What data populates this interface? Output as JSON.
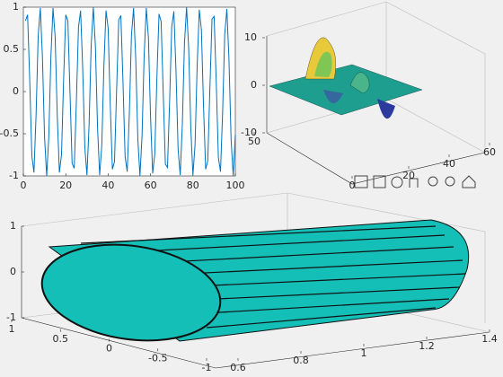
{
  "chart_data": [
    {
      "type": "line",
      "color": "#0072bd",
      "x": [
        1,
        2,
        3,
        4,
        5,
        6,
        7,
        8,
        9,
        10,
        11,
        12,
        13,
        14,
        15,
        16,
        17,
        18,
        19,
        20,
        21,
        22,
        23,
        24,
        25,
        26,
        27,
        28,
        29,
        30,
        31,
        32,
        33,
        34,
        35,
        36,
        37,
        38,
        39,
        40,
        41,
        42,
        43,
        44,
        45,
        46,
        47,
        48,
        49,
        50,
        51,
        52,
        53,
        54,
        55,
        56,
        57,
        58,
        59,
        60,
        61,
        62,
        63,
        64,
        65,
        66,
        67,
        68,
        69,
        70,
        71,
        72,
        73,
        74,
        75,
        76,
        77,
        78,
        79,
        80,
        81,
        82,
        83,
        84,
        85,
        86,
        87,
        88,
        89,
        90,
        91,
        92,
        93,
        94,
        95,
        96,
        97,
        98,
        99,
        100
      ],
      "values": [
        0.84,
        0.91,
        0.14,
        -0.76,
        -0.96,
        -0.28,
        0.66,
        0.99,
        0.41,
        -0.54,
        -1.0,
        -0.54,
        0.42,
        0.99,
        0.65,
        -0.29,
        -0.96,
        -0.75,
        0.15,
        0.91,
        0.84,
        -0.01,
        -0.85,
        -0.91,
        -0.13,
        0.76,
        0.96,
        0.27,
        -0.66,
        -0.99,
        -0.4,
        0.55,
        1.0,
        0.53,
        -0.43,
        -0.99,
        -0.64,
        0.3,
        0.96,
        0.75,
        -0.16,
        -0.92,
        -0.83,
        0.02,
        0.85,
        0.9,
        0.12,
        -0.77,
        -0.95,
        -0.26,
        0.67,
        0.99,
        0.4,
        -0.56,
        -1.0,
        -0.52,
        0.44,
        0.99,
        0.64,
        -0.3,
        -0.97,
        -0.74,
        0.17,
        0.92,
        0.83,
        -0.03,
        -0.86,
        -0.9,
        -0.11,
        0.77,
        0.95,
        0.25,
        -0.68,
        -0.99,
        -0.39,
        0.57,
        1.0,
        0.51,
        -0.44,
        -0.99,
        -0.63,
        0.31,
        0.97,
        0.73,
        -0.18,
        -0.92,
        -0.82,
        0.04,
        0.86,
        0.89,
        0.11,
        -0.78,
        -0.95,
        -0.25,
        0.68,
        0.98,
        0.38,
        -0.57,
        -1.0,
        -0.51
      ],
      "xlim": [
        0,
        100
      ],
      "xticks": [
        0,
        20,
        40,
        60,
        80,
        100
      ],
      "ylim": [
        -1,
        1
      ],
      "yticks": [
        -1,
        -0.5,
        0,
        0.5,
        1
      ]
    },
    {
      "type": "surface",
      "xlim": [
        0,
        60
      ],
      "xticks": [
        20,
        40,
        60
      ],
      "ylim": [
        0,
        50
      ],
      "yticks": [
        0,
        50
      ],
      "zlim": [
        -10,
        10
      ],
      "zticks": [
        -10,
        0,
        10
      ]
    },
    {
      "type": "surface",
      "color": "#14bfb8",
      "xlim": [
        0.6,
        1.4
      ],
      "xticks": [
        0.6,
        0.8,
        1,
        1.2,
        1.4
      ],
      "ylim": [
        -1,
        1
      ],
      "yticks": [
        -1,
        -0.5,
        0,
        0.5,
        1
      ],
      "zlim": [
        -1,
        1
      ],
      "zticks": [
        -1,
        0,
        1
      ]
    }
  ]
}
